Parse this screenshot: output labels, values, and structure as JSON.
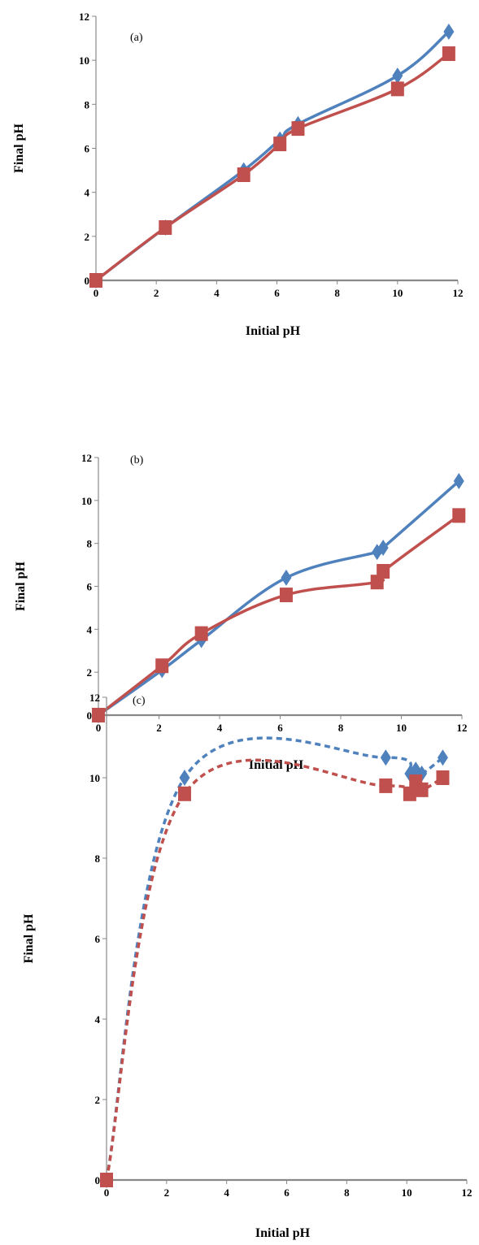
{
  "chart_data": [
    {
      "type": "line",
      "panel_label": "(a)",
      "xlabel": "Initial pH",
      "ylabel": "Final pH",
      "xlim": [
        0,
        12
      ],
      "ylim": [
        0,
        12
      ],
      "xticks": [
        "0",
        "2",
        "4",
        "6",
        "8",
        "10",
        "12"
      ],
      "yticks": [
        "0",
        "2",
        "4",
        "6",
        "8",
        "10",
        "12"
      ],
      "line_style": "solid",
      "series": [
        {
          "color": "#4f81bd",
          "marker": "diamond",
          "x": [
            0,
            2.3,
            4.9,
            6.1,
            6.7,
            10.0,
            11.7
          ],
          "y": [
            0,
            2.4,
            5.0,
            6.4,
            7.1,
            9.3,
            11.3
          ]
        },
        {
          "color": "#c0504d",
          "marker": "square",
          "x": [
            0,
            2.3,
            4.9,
            6.1,
            6.7,
            10.0,
            11.7
          ],
          "y": [
            0,
            2.4,
            4.8,
            6.2,
            6.9,
            8.7,
            10.3
          ]
        }
      ]
    },
    {
      "type": "line",
      "panel_label": "(b)",
      "xlabel": "Initial pH",
      "ylabel": "Final pH",
      "xlim": [
        0,
        12
      ],
      "ylim": [
        0,
        12
      ],
      "xticks": [
        "0",
        "2",
        "4",
        "6",
        "8",
        "10",
        "12"
      ],
      "yticks": [
        "0",
        "2",
        "4",
        "6",
        "8",
        "10",
        "12"
      ],
      "line_style": "solid",
      "series": [
        {
          "color": "#4f81bd",
          "marker": "diamond",
          "x": [
            0,
            2.1,
            3.4,
            6.2,
            9.2,
            9.4,
            11.9
          ],
          "y": [
            0,
            2.1,
            3.5,
            6.4,
            7.6,
            7.8,
            10.9
          ]
        },
        {
          "color": "#c0504d",
          "marker": "square",
          "x": [
            0,
            2.1,
            3.4,
            6.2,
            9.2,
            9.4,
            11.9
          ],
          "y": [
            0,
            2.3,
            3.8,
            5.6,
            6.2,
            6.7,
            9.3
          ]
        }
      ]
    },
    {
      "type": "line",
      "panel_label": "(c)",
      "xlabel": "Initial pH",
      "ylabel": "Final pH",
      "xlim": [
        0,
        12
      ],
      "ylim": [
        0,
        12
      ],
      "xticks": [
        "0",
        "2",
        "4",
        "6",
        "8",
        "10",
        "12"
      ],
      "yticks": [
        "0",
        "2",
        "4",
        "6",
        "8",
        "10",
        "12"
      ],
      "line_style": "dashed",
      "series": [
        {
          "color": "#4f81bd",
          "marker": "diamond",
          "x": [
            0,
            2.6,
            9.3,
            10.1,
            10.3,
            10.5,
            11.2
          ],
          "y": [
            0,
            10.0,
            10.5,
            10.1,
            10.2,
            10.1,
            10.5
          ]
        },
        {
          "color": "#c0504d",
          "marker": "square",
          "x": [
            0,
            2.6,
            9.3,
            10.1,
            10.3,
            10.5,
            11.2
          ],
          "y": [
            0,
            9.6,
            9.8,
            9.6,
            9.9,
            9.7,
            10.0
          ]
        }
      ]
    }
  ]
}
